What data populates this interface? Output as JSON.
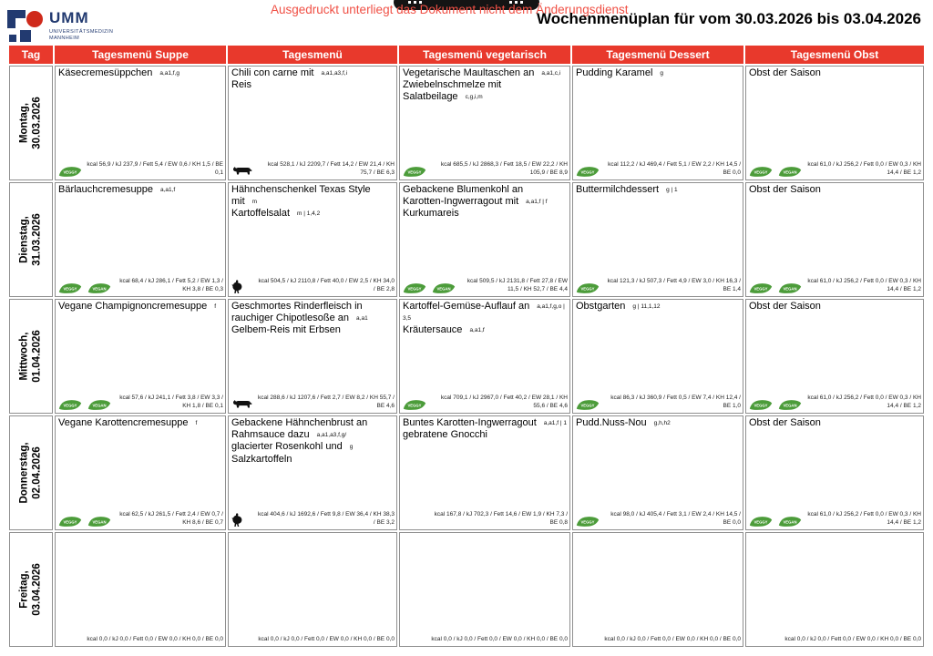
{
  "colors": {
    "header_red": "#e8392c",
    "notice_red": "#f05045",
    "logo_blue": "#223a70",
    "logo_red": "#cf2a1b",
    "leaf_green": "#4c9c3a"
  },
  "logo": {
    "name": "UMM",
    "subtitle_line1": "UNIVERSITÄTSMEDIZIN",
    "subtitle_line2": "MANNHEIM"
  },
  "meta": {
    "notice": "Ausgedruckt unterliegt das Dokument nicht dem Änderungsdienst",
    "title": "Wochenmenüplan für vom 30.03.2026 bis 03.04.2026"
  },
  "icons": {
    "veggy_label": "VEGGY",
    "vegan_label": "VEGAN"
  },
  "table": {
    "columns": [
      "Tag",
      "Tagesmenü Suppe",
      "Tagesmenü",
      "Tagesmenü vegetarisch",
      "Tagesmenü Dessert",
      "Tagesmenü Obst"
    ],
    "rows": [
      {
        "day": "Montag,",
        "date": "30.03.2026",
        "cells": [
          {
            "lines": [
              {
                "text": "Käsecremesüppchen",
                "allergens": "a,a1,f,g"
              }
            ],
            "icons": [
              "veggy"
            ],
            "nutrition": "kcal 56,9 / kJ 237,9 / Fett 5,4 / EW 0,6 / KH 1,5 / BE 0,1"
          },
          {
            "lines": [
              {
                "text": "Chili con carne mit",
                "allergens": "a,a1,a3,f,i"
              },
              {
                "text": "Reis",
                "allergens": ""
              }
            ],
            "icons": [
              "cow"
            ],
            "nutrition": "kcal 528,1 / kJ 2209,7 / Fett 14,2 / EW 21,4 / KH 75,7 / BE 6,3"
          },
          {
            "lines": [
              {
                "text": "Vegetarische Maultaschen an",
                "allergens": "a,a1,c,i"
              },
              {
                "text": "Zwiebelnschmelze mit",
                "allergens": ""
              },
              {
                "text": "Salatbeilage",
                "allergens": "c,g,i,m"
              }
            ],
            "icons": [
              "veggy"
            ],
            "nutrition": "kcal 685,5 / kJ 2868,3 / Fett 18,5 / EW 22,2 / KH 105,9 / BE 8,9"
          },
          {
            "lines": [
              {
                "text": "Pudding Karamel",
                "allergens": "g"
              }
            ],
            "icons": [
              "veggy"
            ],
            "nutrition": "kcal 112,2 / kJ 469,4 / Fett 5,1 / EW 2,2 / KH 14,5 / BE 0,0"
          },
          {
            "lines": [
              {
                "text": "Obst der Saison",
                "allergens": ""
              }
            ],
            "icons": [
              "veggy",
              "vegan"
            ],
            "nutrition": "kcal 61,0 / kJ 256,2 / Fett 0,0 / EW 0,3 / KH 14,4 / BE 1,2"
          }
        ]
      },
      {
        "day": "Dienstag,",
        "date": "31.03.2026",
        "cells": [
          {
            "lines": [
              {
                "text": "Bärlauchcremesuppe",
                "allergens": "a,a1,f"
              }
            ],
            "icons": [
              "veggy",
              "vegan"
            ],
            "nutrition": "kcal 68,4 / kJ 286,1 / Fett 5,2 / EW 1,3 / KH 3,8 / BE 0,3"
          },
          {
            "lines": [
              {
                "text": "Hähnchenschenkel Texas Style mit",
                "allergens": "m"
              },
              {
                "text": "Kartoffelsalat",
                "allergens": "m  |  1,4,2"
              }
            ],
            "icons": [
              "chicken"
            ],
            "nutrition": "kcal 504,5 / kJ 2110,8 / Fett 40,0 / EW 2,5 / KH 34,0 / BE 2,8"
          },
          {
            "lines": [
              {
                "text": "Gebackene Blumenkohl an Karotten-Ingwerragout mit",
                "allergens": "a,a1,f  |  f"
              },
              {
                "text": "Kurkumareis",
                "allergens": ""
              }
            ],
            "icons": [
              "veggy",
              "vegan"
            ],
            "nutrition": "kcal 509,5 / kJ 2131,8 / Fett 27,8 / EW 11,5 / KH 52,7 / BE 4,4"
          },
          {
            "lines": [
              {
                "text": "Buttermilchdessert",
                "allergens": "g  |  1"
              }
            ],
            "icons": [
              "veggy"
            ],
            "nutrition": "kcal 121,3 / kJ 507,3 / Fett 4,9 / EW 3,0 / KH 16,3 / BE 1,4"
          },
          {
            "lines": [
              {
                "text": "Obst der Saison",
                "allergens": ""
              }
            ],
            "icons": [
              "veggy",
              "vegan"
            ],
            "nutrition": "kcal 61,0 / kJ 256,2 / Fett 0,0 / EW 0,3 / KH 14,4 / BE 1,2"
          }
        ]
      },
      {
        "day": "Mittwoch,",
        "date": "01.04.2026",
        "cells": [
          {
            "lines": [
              {
                "text": "Vegane Champignoncremesuppe",
                "allergens": "f"
              }
            ],
            "icons": [
              "veggy",
              "vegan"
            ],
            "nutrition": "kcal 57,6 / kJ 241,1 / Fett 3,8 / EW 3,3 / KH 1,8 / BE 0,1"
          },
          {
            "lines": [
              {
                "text": "Geschmortes Rinderfleisch in rauchiger Chipotlesoße an",
                "allergens": "a,a1"
              },
              {
                "text": "Gelbem-Reis mit Erbsen",
                "allergens": ""
              }
            ],
            "icons": [
              "cow"
            ],
            "nutrition": "kcal 288,6 / kJ 1207,6 / Fett 2,7 / EW 8,2 / KH 55,7 / BE 4,6"
          },
          {
            "lines": [
              {
                "text": "Kartoffel-Gemüse-Auflauf an",
                "allergens": "a,a1,f,g,o  |  3,5"
              },
              {
                "text": "Kräutersauce",
                "allergens": "a,a1,f"
              }
            ],
            "icons": [
              "veggy"
            ],
            "nutrition": "kcal 709,1 / kJ 2967,0 / Fett 40,2 / EW 28,1 / KH 55,6 / BE 4,6"
          },
          {
            "lines": [
              {
                "text": "Obstgarten",
                "allergens": "g  |  11,1,12"
              }
            ],
            "icons": [
              "veggy"
            ],
            "nutrition": "kcal 86,3 / kJ 360,9 / Fett 0,5 / EW 7,4 / KH 12,4 / BE 1,0"
          },
          {
            "lines": [
              {
                "text": "Obst der Saison",
                "allergens": ""
              }
            ],
            "icons": [
              "veggy",
              "vegan"
            ],
            "nutrition": "kcal 61,0 / kJ 256,2 / Fett 0,0 / EW 0,3 / KH 14,4 / BE 1,2"
          }
        ]
      },
      {
        "day": "Donnerstag,",
        "date": "02.04.2026",
        "cells": [
          {
            "lines": [
              {
                "text": "Vegane Karottencremesuppe",
                "allergens": "f"
              }
            ],
            "icons": [
              "veggy",
              "vegan"
            ],
            "nutrition": "kcal 62,5 / kJ 261,5 / Fett 2,4 / EW 0,7 / KH 8,6 / BE 0,7"
          },
          {
            "lines": [
              {
                "text": "Gebackene Hähnchenbrust an Rahmsauce dazu",
                "allergens": "a,a1,a3,f,g/"
              },
              {
                "text": "glacierter Rosenkohl und",
                "allergens": "g"
              },
              {
                "text": "Salzkartoffeln",
                "allergens": ""
              }
            ],
            "icons": [
              "chicken"
            ],
            "nutrition": "kcal 404,6 / kJ 1692,6 / Fett 9,8 / EW 36,4 / KH 38,3 / BE 3,2"
          },
          {
            "lines": [
              {
                "text": "Buntes Karotten-Ingwerragout",
                "allergens": "a,a1,f  |  1"
              },
              {
                "text": "gebratene Gnocchi",
                "allergens": ""
              }
            ],
            "icons": [],
            "nutrition": "kcal 167,8 / kJ 702,3 / Fett 14,6 / EW 1,9 / KH 7,3 / BE 0,8"
          },
          {
            "lines": [
              {
                "text": "Pudd.Nuss-Nou",
                "allergens": "g,h,h2"
              }
            ],
            "icons": [
              "veggy"
            ],
            "nutrition": "kcal 98,0 / kJ 405,4 / Fett 3,1 / EW 2,4 / KH 14,5 / BE 0,0"
          },
          {
            "lines": [
              {
                "text": "Obst der Saison",
                "allergens": ""
              }
            ],
            "icons": [
              "veggy",
              "vegan"
            ],
            "nutrition": "kcal 61,0 / kJ 256,2 / Fett 0,0 / EW 0,3 / KH 14,4 / BE 1,2"
          }
        ]
      },
      {
        "day": "Freitag,",
        "date": "03.04.2026",
        "cells": [
          {
            "lines": [],
            "icons": [],
            "nutrition": "kcal 0,0 / kJ 0,0 / Fett 0,0 / EW 0,0 / KH 0,0 / BE 0,0"
          },
          {
            "lines": [],
            "icons": [],
            "nutrition": "kcal 0,0 / kJ 0,0 / Fett 0,0 / EW 0,0 / KH 0,0 / BE 0,0"
          },
          {
            "lines": [],
            "icons": [],
            "nutrition": "kcal 0,0 / kJ 0,0 / Fett 0,0 / EW 0,0 / KH 0,0 / BE 0,0"
          },
          {
            "lines": [],
            "icons": [],
            "nutrition": "kcal 0,0 / kJ 0,0 / Fett 0,0 / EW 0,0 / KH 0,0 / BE 0,0"
          },
          {
            "lines": [],
            "icons": [],
            "nutrition": "kcal 0,0 / kJ 0,0 / Fett 0,0 / EW 0,0 / KH 0,0 / BE 0,0"
          }
        ]
      }
    ]
  }
}
